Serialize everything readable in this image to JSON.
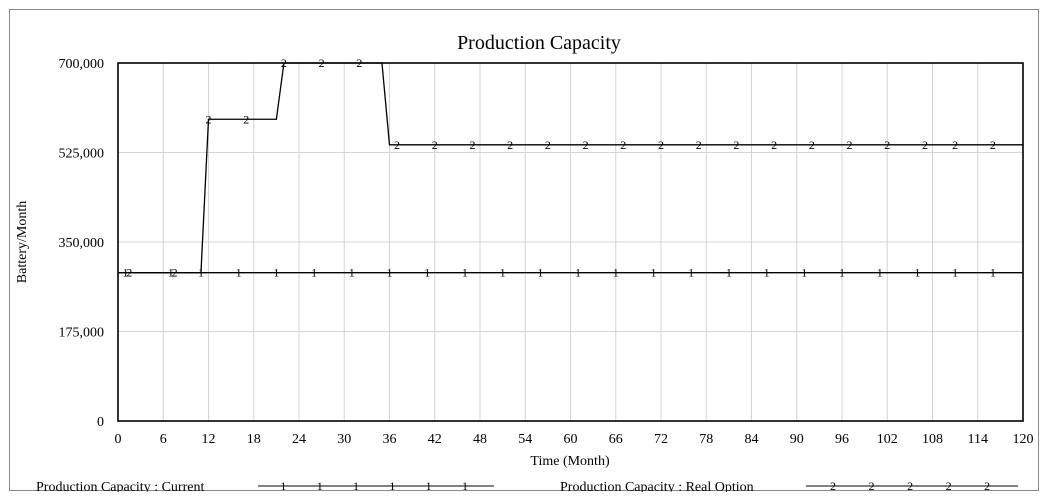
{
  "chart_data": {
    "type": "line",
    "title": "Production Capacity",
    "xlabel": "Time (Month)",
    "ylabel": "Battery/Month",
    "xlim": [
      0,
      120
    ],
    "ylim": [
      0,
      700000
    ],
    "x_ticks": [
      0,
      6,
      12,
      18,
      24,
      30,
      36,
      42,
      48,
      54,
      60,
      66,
      72,
      78,
      84,
      90,
      96,
      102,
      108,
      114,
      120
    ],
    "y_ticks": [
      0,
      175000,
      350000,
      525000,
      700000
    ],
    "y_tick_labels": [
      "0",
      "175,000",
      "350,000",
      "525,000",
      "700,000"
    ],
    "grid": true,
    "legend_position": "bottom",
    "series": [
      {
        "name": "Production Capacity : Current",
        "marker_label": "1",
        "color": "#000000",
        "x": [
          0,
          120
        ],
        "y": [
          290000,
          290000
        ],
        "markers_x": [
          1,
          7,
          11,
          16,
          21,
          26,
          31,
          36,
          41,
          46,
          51,
          56,
          61,
          66,
          71,
          76,
          81,
          86,
          91,
          96,
          101,
          106,
          111,
          116
        ]
      },
      {
        "name": "Production Capacity : Real Option",
        "marker_label": "2",
        "color": "#000000",
        "x": [
          0,
          11,
          12,
          21,
          22,
          35,
          36,
          120
        ],
        "y": [
          290000,
          290000,
          590000,
          590000,
          700000,
          700000,
          540000,
          540000
        ],
        "markers_x": [
          1.5,
          7.5,
          12,
          17,
          22,
          27,
          32,
          37,
          42,
          47,
          52,
          57,
          62,
          67,
          72,
          77,
          82,
          87,
          92,
          97,
          102,
          107,
          111,
          116
        ]
      }
    ]
  }
}
